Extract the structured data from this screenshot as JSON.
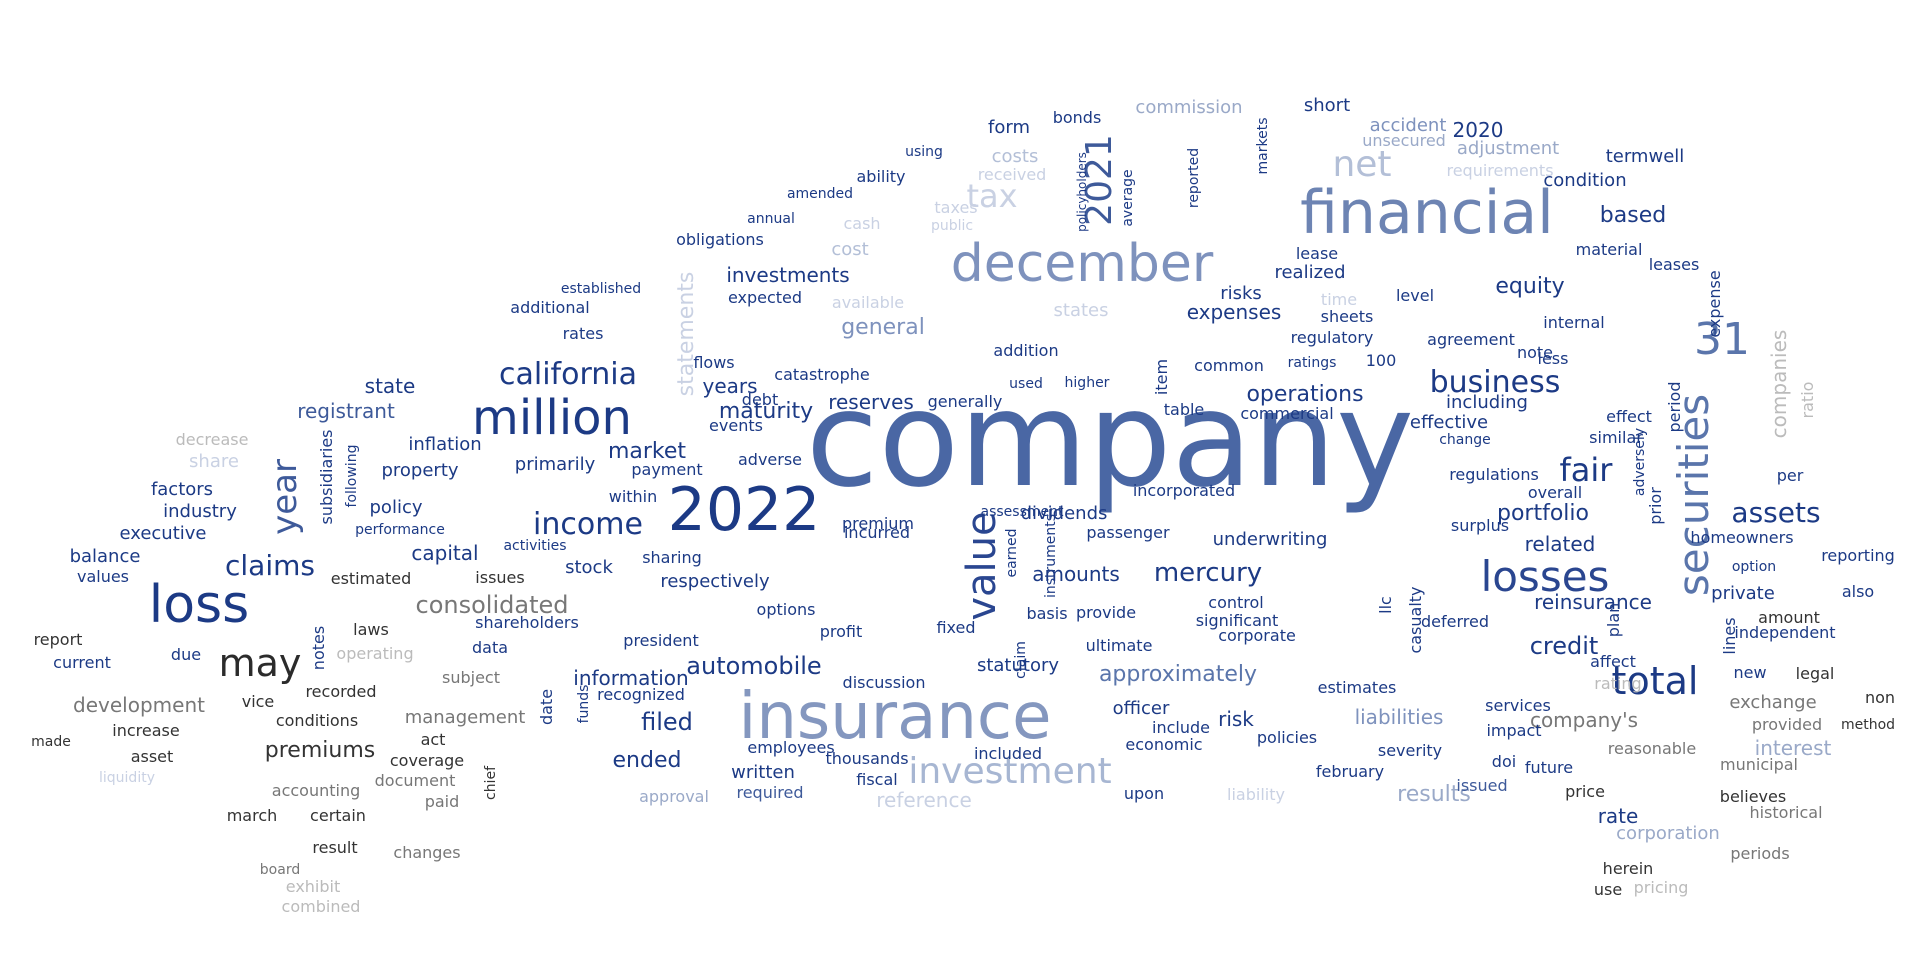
{
  "words": [
    {
      "text": "company",
      "color": "#4a67a4"
    },
    {
      "text": "insurance",
      "color": "#8497bf"
    },
    {
      "text": "financial",
      "color": "#6d84b3"
    },
    {
      "text": "december",
      "color": "#7e92bd"
    },
    {
      "text": "2022",
      "color": "#1c3a85"
    },
    {
      "text": "loss",
      "color": "#1c3a85"
    },
    {
      "text": "million",
      "color": "#1c3a85"
    },
    {
      "text": "securities",
      "color": "#5a75ab"
    },
    {
      "text": "losses",
      "color": "#2a4690"
    },
    {
      "text": "investment",
      "color": "#a7b6d2"
    },
    {
      "text": "value",
      "color": "#2a4690"
    },
    {
      "text": "total",
      "color": "#1c3a85"
    },
    {
      "text": "may",
      "color": "#2b2b2b"
    },
    {
      "text": "31",
      "color": "#5a75ab"
    },
    {
      "text": "net",
      "color": "#b3bfd7"
    },
    {
      "text": "tax",
      "color": "#c9d1e3"
    },
    {
      "text": "2021",
      "color": "#3e5a9a"
    },
    {
      "text": "income",
      "color": "#1c3a85"
    },
    {
      "text": "california",
      "color": "#1c3a85"
    },
    {
      "text": "business",
      "color": "#1c3a85"
    },
    {
      "text": "fair",
      "color": "#1c3a85"
    },
    {
      "text": "assets",
      "color": "#1c3a85"
    },
    {
      "text": "year",
      "color": "#3e5a9a"
    },
    {
      "text": "claims",
      "color": "#1c3a85"
    },
    {
      "text": "consolidated",
      "color": "#777777"
    },
    {
      "text": "mercury",
      "color": "#1c3a85"
    },
    {
      "text": "approximately",
      "color": "#5a75ab"
    },
    {
      "text": "results",
      "color": "#9aa9c8"
    },
    {
      "text": "automobile",
      "color": "#1c3a85"
    },
    {
      "text": "reinsurance",
      "color": "#1c3a85"
    },
    {
      "text": "credit",
      "color": "#1c3a85"
    },
    {
      "text": "statements",
      "color": "#c9d1e3"
    },
    {
      "text": "general",
      "color": "#7e92bd"
    },
    {
      "text": "operations",
      "color": "#1c3a85"
    },
    {
      "text": "portfolio",
      "color": "#1c3a85"
    },
    {
      "text": "premiums",
      "color": "#333333"
    },
    {
      "text": "company's",
      "color": "#777777"
    },
    {
      "text": "development",
      "color": "#777777"
    },
    {
      "text": "information",
      "color": "#1c3a85"
    },
    {
      "text": "ended",
      "color": "#1c3a85"
    },
    {
      "text": "filed",
      "color": "#1c3a85"
    },
    {
      "text": "liabilities",
      "color": "#7e92bd"
    },
    {
      "text": "equity",
      "color": "#1c3a85"
    },
    {
      "text": "interest",
      "color": "#9aa9c8"
    },
    {
      "text": "companies",
      "color": "#bbbbbb"
    },
    {
      "text": "based",
      "color": "#1c3a85"
    },
    {
      "text": "2020",
      "color": "#1c3a85"
    },
    {
      "text": "related",
      "color": "#1c3a85"
    },
    {
      "text": "maturity",
      "color": "#1c3a85"
    },
    {
      "text": "registrant",
      "color": "#3e5a9a"
    },
    {
      "text": "state",
      "color": "#1c3a85"
    },
    {
      "text": "capital",
      "color": "#1c3a85"
    },
    {
      "text": "market",
      "color": "#1c3a85"
    },
    {
      "text": "reserves",
      "color": "#1c3a85"
    },
    {
      "text": "investments",
      "color": "#1c3a85"
    },
    {
      "text": "years",
      "color": "#1c3a85"
    },
    {
      "text": "amounts",
      "color": "#1c3a85"
    },
    {
      "text": "expenses",
      "color": "#1c3a85"
    },
    {
      "text": "risks",
      "color": "#1c3a85"
    },
    {
      "text": "stock",
      "color": "#1c3a85"
    },
    {
      "text": "dividends",
      "color": "#1c3a85"
    },
    {
      "text": "statutory",
      "color": "#1c3a85"
    },
    {
      "text": "rate",
      "color": "#1c3a85"
    },
    {
      "text": "reference",
      "color": "#c9d1e3"
    },
    {
      "text": "written",
      "color": "#1c3a85"
    },
    {
      "text": "management",
      "color": "#777777"
    },
    {
      "text": "corporation",
      "color": "#9aa9c8"
    },
    {
      "text": "factors",
      "color": "#1c3a85"
    },
    {
      "text": "industry",
      "color": "#1c3a85"
    },
    {
      "text": "executive",
      "color": "#1c3a85"
    },
    {
      "text": "balance",
      "color": "#1c3a85"
    },
    {
      "text": "values",
      "color": "#1c3a85"
    },
    {
      "text": "policy",
      "color": "#1c3a85"
    },
    {
      "text": "property",
      "color": "#1c3a85"
    },
    {
      "text": "inflation",
      "color": "#1c3a85"
    },
    {
      "text": "primarily",
      "color": "#1c3a85"
    },
    {
      "text": "underwriting",
      "color": "#1c3a85"
    },
    {
      "text": "short",
      "color": "#1c3a85"
    },
    {
      "text": "termwell",
      "color": "#1c3a85"
    },
    {
      "text": "condition",
      "color": "#1c3a85"
    },
    {
      "text": "adjustment",
      "color": "#9aa9c8"
    },
    {
      "text": "accident",
      "color": "#7e92bd"
    },
    {
      "text": "commission",
      "color": "#9aa9c8"
    },
    {
      "text": "costs",
      "color": "#b3bfd7"
    },
    {
      "text": "form",
      "color": "#1c3a85"
    },
    {
      "text": "bonds",
      "color": "#1c3a85"
    },
    {
      "text": "cost",
      "color": "#b3bfd7"
    },
    {
      "text": "cash",
      "color": "#c9d1e3"
    },
    {
      "text": "ability",
      "color": "#1c3a85"
    },
    {
      "text": "obligations",
      "color": "#1c3a85"
    },
    {
      "text": "expected",
      "color": "#1c3a85"
    },
    {
      "text": "available",
      "color": "#c9d1e3"
    },
    {
      "text": "states",
      "color": "#c9d1e3"
    },
    {
      "text": "regulatory",
      "color": "#1c3a85"
    },
    {
      "text": "agreement",
      "color": "#1c3a85"
    },
    {
      "text": "internal",
      "color": "#1c3a85"
    },
    {
      "text": "surplus",
      "color": "#1c3a85"
    },
    {
      "text": "realized",
      "color": "#1c3a85"
    },
    {
      "text": "material",
      "color": "#1c3a85"
    },
    {
      "text": "leases",
      "color": "#1c3a85"
    },
    {
      "text": "including",
      "color": "#1c3a85"
    },
    {
      "text": "effective",
      "color": "#1c3a85"
    },
    {
      "text": "regulations",
      "color": "#1c3a85"
    },
    {
      "text": "effect",
      "color": "#1c3a85"
    },
    {
      "text": "homeowners",
      "color": "#1c3a85"
    },
    {
      "text": "reporting",
      "color": "#1c3a85"
    },
    {
      "text": "private",
      "color": "#1c3a85"
    },
    {
      "text": "also",
      "color": "#1c3a85"
    },
    {
      "text": "independent",
      "color": "#1c3a85"
    },
    {
      "text": "amount",
      "color": "#333333"
    },
    {
      "text": "exchange",
      "color": "#777777"
    },
    {
      "text": "legal",
      "color": "#333333"
    },
    {
      "text": "non",
      "color": "#333333"
    },
    {
      "text": "provided",
      "color": "#777777"
    },
    {
      "text": "method",
      "color": "#333333"
    },
    {
      "text": "reasonable",
      "color": "#777777"
    },
    {
      "text": "municipal",
      "color": "#777777"
    },
    {
      "text": "believes",
      "color": "#333333"
    },
    {
      "text": "historical",
      "color": "#777777"
    },
    {
      "text": "periods",
      "color": "#777777"
    },
    {
      "text": "herein",
      "color": "#333333"
    },
    {
      "text": "use",
      "color": "#333333"
    },
    {
      "text": "pricing",
      "color": "#bbbbbb"
    },
    {
      "text": "future",
      "color": "#1c3a85"
    },
    {
      "text": "price",
      "color": "#333333"
    },
    {
      "text": "impact",
      "color": "#1c3a85"
    },
    {
      "text": "services",
      "color": "#1c3a85"
    },
    {
      "text": "affect",
      "color": "#1c3a85"
    },
    {
      "text": "rating",
      "color": "#bbbbbb"
    },
    {
      "text": "doi",
      "color": "#1c3a85"
    },
    {
      "text": "issued",
      "color": "#3e5a9a"
    },
    {
      "text": "severity",
      "color": "#1c3a85"
    },
    {
      "text": "policies",
      "color": "#1c3a85"
    },
    {
      "text": "estimates",
      "color": "#1c3a85"
    },
    {
      "text": "deferred",
      "color": "#1c3a85"
    },
    {
      "text": "control",
      "color": "#1c3a85"
    },
    {
      "text": "corporate",
      "color": "#1c3a85"
    },
    {
      "text": "significant",
      "color": "#1c3a85"
    },
    {
      "text": "risk",
      "color": "#1c3a85"
    },
    {
      "text": "include",
      "color": "#1c3a85"
    },
    {
      "text": "economic",
      "color": "#1c3a85"
    },
    {
      "text": "officer",
      "color": "#1c3a85"
    },
    {
      "text": "ultimate",
      "color": "#1c3a85"
    },
    {
      "text": "provide",
      "color": "#1c3a85"
    },
    {
      "text": "basis",
      "color": "#1c3a85"
    },
    {
      "text": "incurred",
      "color": "#1c3a85"
    },
    {
      "text": "premium",
      "color": "#1c3a85"
    },
    {
      "text": "options",
      "color": "#1c3a85"
    },
    {
      "text": "profit",
      "color": "#1c3a85"
    },
    {
      "text": "fixed",
      "color": "#1c3a85"
    },
    {
      "text": "sharing",
      "color": "#1c3a85"
    },
    {
      "text": "respectively",
      "color": "#1c3a85"
    },
    {
      "text": "president",
      "color": "#1c3a85"
    },
    {
      "text": "recognized",
      "color": "#1c3a85"
    },
    {
      "text": "shareholders",
      "color": "#1c3a85"
    },
    {
      "text": "data",
      "color": "#1c3a85"
    },
    {
      "text": "subject",
      "color": "#777777"
    },
    {
      "text": "operating",
      "color": "#bbbbbb"
    },
    {
      "text": "estimated",
      "color": "#333333"
    },
    {
      "text": "issues",
      "color": "#333333"
    },
    {
      "text": "recorded",
      "color": "#333333"
    },
    {
      "text": "conditions",
      "color": "#333333"
    },
    {
      "text": "vice",
      "color": "#333333"
    },
    {
      "text": "increase",
      "color": "#333333"
    },
    {
      "text": "asset",
      "color": "#333333"
    },
    {
      "text": "accounting",
      "color": "#777777"
    },
    {
      "text": "document",
      "color": "#777777"
    },
    {
      "text": "coverage",
      "color": "#333333"
    },
    {
      "text": "act",
      "color": "#333333"
    },
    {
      "text": "paid",
      "color": "#777777"
    },
    {
      "text": "march",
      "color": "#333333"
    },
    {
      "text": "certain",
      "color": "#333333"
    },
    {
      "text": "result",
      "color": "#333333"
    },
    {
      "text": "changes",
      "color": "#777777"
    },
    {
      "text": "exhibit",
      "color": "#bbbbbb"
    },
    {
      "text": "board",
      "color": "#777777"
    },
    {
      "text": "combined",
      "color": "#bbbbbb"
    },
    {
      "text": "report",
      "color": "#333333"
    },
    {
      "text": "current",
      "color": "#1c3a85"
    },
    {
      "text": "due",
      "color": "#1c3a85"
    },
    {
      "text": "made",
      "color": "#333333"
    },
    {
      "text": "liquidity",
      "color": "#c9d1e3"
    },
    {
      "text": "share",
      "color": "#c9d1e3"
    },
    {
      "text": "decrease",
      "color": "#bbbbbb"
    },
    {
      "text": "laws",
      "color": "#333333"
    },
    {
      "text": "performance",
      "color": "#1c3a85"
    },
    {
      "text": "activities",
      "color": "#1c3a85"
    },
    {
      "text": "within",
      "color": "#1c3a85"
    },
    {
      "text": "payment",
      "color": "#1c3a85"
    },
    {
      "text": "adverse",
      "color": "#1c3a85"
    },
    {
      "text": "events",
      "color": "#1c3a85"
    },
    {
      "text": "debt",
      "color": "#1c3a85"
    },
    {
      "text": "flows",
      "color": "#1c3a85"
    },
    {
      "text": "catastrophe",
      "color": "#1c3a85"
    },
    {
      "text": "generally",
      "color": "#1c3a85"
    },
    {
      "text": "addition",
      "color": "#1c3a85"
    },
    {
      "text": "used",
      "color": "#1c3a85"
    },
    {
      "text": "higher",
      "color": "#1c3a85"
    },
    {
      "text": "table",
      "color": "#1c3a85"
    },
    {
      "text": "commercial",
      "color": "#1c3a85"
    },
    {
      "text": "common",
      "color": "#1c3a85"
    },
    {
      "text": "incorporated",
      "color": "#1c3a85"
    },
    {
      "text": "assessment",
      "color": "#1c3a85"
    },
    {
      "text": "passenger",
      "color": "#1c3a85"
    },
    {
      "text": "thousands",
      "color": "#1c3a85"
    },
    {
      "text": "fiscal",
      "color": "#1c3a85"
    },
    {
      "text": "discussion",
      "color": "#1c3a85"
    },
    {
      "text": "included",
      "color": "#1c3a85"
    },
    {
      "text": "employees",
      "color": "#1c3a85"
    },
    {
      "text": "required",
      "color": "#3e5a9a"
    },
    {
      "text": "approval",
      "color": "#9aa9c8"
    },
    {
      "text": "february",
      "color": "#1c3a85"
    },
    {
      "text": "liability",
      "color": "#c9d1e3"
    },
    {
      "text": "upon",
      "color": "#1c3a85"
    },
    {
      "text": "additional",
      "color": "#1c3a85"
    },
    {
      "text": "established",
      "color": "#1c3a85"
    },
    {
      "text": "rates",
      "color": "#1c3a85"
    },
    {
      "text": "amended",
      "color": "#1c3a85"
    },
    {
      "text": "annual",
      "color": "#1c3a85"
    },
    {
      "text": "taxes",
      "color": "#c9d1e3"
    },
    {
      "text": "public",
      "color": "#c9d1e3"
    },
    {
      "text": "received",
      "color": "#c9d1e3"
    },
    {
      "text": "using",
      "color": "#1c3a85"
    },
    {
      "text": "unsecured",
      "color": "#9aa9c8"
    },
    {
      "text": "requirements",
      "color": "#c9d1e3"
    },
    {
      "text": "lease",
      "color": "#1c3a85"
    },
    {
      "text": "time",
      "color": "#c9d1e3"
    },
    {
      "text": "sheets",
      "color": "#1c3a85"
    },
    {
      "text": "level",
      "color": "#1c3a85"
    },
    {
      "text": "note",
      "color": "#1c3a85"
    },
    {
      "text": "less",
      "color": "#1c3a85"
    },
    {
      "text": "ratings",
      "color": "#1c3a85"
    },
    {
      "text": "100",
      "color": "#1c3a85"
    },
    {
      "text": "similar",
      "color": "#1c3a85"
    },
    {
      "text": "change",
      "color": "#1c3a85"
    },
    {
      "text": "overall",
      "color": "#1c3a85"
    },
    {
      "text": "plan",
      "color": "#1c3a85"
    },
    {
      "text": "lines",
      "color": "#1c3a85"
    },
    {
      "text": "option",
      "color": "#1c3a85"
    },
    {
      "text": "new",
      "color": "#1c3a85"
    },
    {
      "text": "ratio",
      "color": "#bbbbbb"
    },
    {
      "text": "per",
      "color": "#1c3a85"
    },
    {
      "text": "expense",
      "color": "#1c3a85"
    },
    {
      "text": "adversely",
      "color": "#1c3a85"
    },
    {
      "text": "prior",
      "color": "#1c3a85"
    },
    {
      "text": "period",
      "color": "#1c3a85"
    },
    {
      "text": "item",
      "color": "#1c3a85"
    },
    {
      "text": "average",
      "color": "#1c3a85"
    },
    {
      "text": "reported",
      "color": "#1c3a85"
    },
    {
      "text": "markets",
      "color": "#1c3a85"
    },
    {
      "text": "casualty",
      "color": "#1c3a85"
    },
    {
      "text": "llc",
      "color": "#1c3a85"
    },
    {
      "text": "claim",
      "color": "#1c3a85"
    },
    {
      "text": "instruments",
      "color": "#1c3a85"
    },
    {
      "text": "earned",
      "color": "#1c3a85"
    },
    {
      "text": "notes",
      "color": "#1c3a85"
    },
    {
      "text": "subsidiaries",
      "color": "#1c3a85"
    },
    {
      "text": "following",
      "color": "#1c3a85"
    },
    {
      "text": "funds",
      "color": "#1c3a85"
    },
    {
      "text": "date",
      "color": "#1c3a85"
    },
    {
      "text": "chief",
      "color": "#333333"
    },
    {
      "text": "policyholders",
      "color": "#1c3a85"
    }
  ]
}
